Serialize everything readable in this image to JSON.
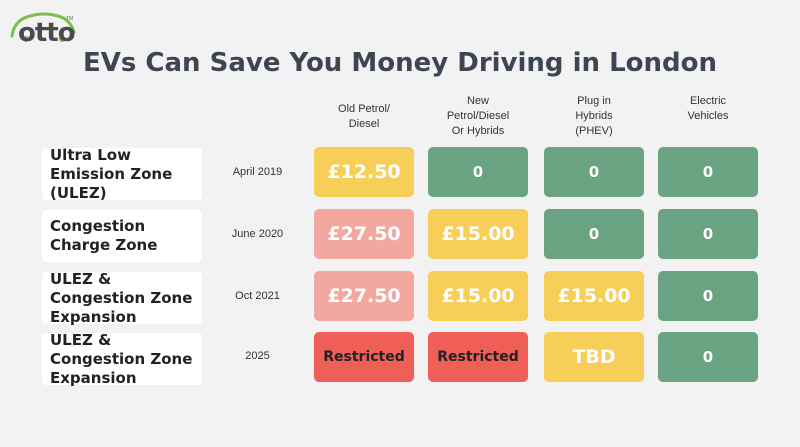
{
  "logo": {
    "text": "otto",
    "tm": "TM"
  },
  "title": "EVs Can Save You Money Driving in London",
  "columns": [
    {
      "line1": "Old Petrol/",
      "line2": "Diesel",
      "line3": ""
    },
    {
      "line1": "New",
      "line2": "Petrol/Diesel",
      "line3": "Or Hybrids"
    },
    {
      "line1": "Plug in",
      "line2": "Hybrids",
      "line3": "(PHEV)"
    },
    {
      "line1": "Electric",
      "line2": "Vehicles",
      "line3": ""
    }
  ],
  "rows": [
    {
      "label": "Ultra Low Emission Zone (ULEZ)",
      "date": "April 2019",
      "cells": [
        "£12.50",
        "0",
        "0",
        "0"
      ]
    },
    {
      "label": "Congestion Charge Zone",
      "date": "June 2020",
      "cells": [
        "£27.50",
        "£15.00",
        "0",
        "0"
      ]
    },
    {
      "label": "ULEZ & Congestion Zone Expansion",
      "date": "Oct 2021",
      "cells": [
        "£27.50",
        "£15.00",
        "£15.00",
        "0"
      ]
    },
    {
      "label": "ULEZ & Congestion Zone Expansion",
      "date": "2025",
      "cells": [
        "Restricted",
        "Restricted",
        "TBD",
        "0"
      ]
    }
  ],
  "colors": {
    "yellow": "#f7cf58",
    "green": "#69a382",
    "pink": "#f3a89f",
    "red": "#f05e58"
  }
}
